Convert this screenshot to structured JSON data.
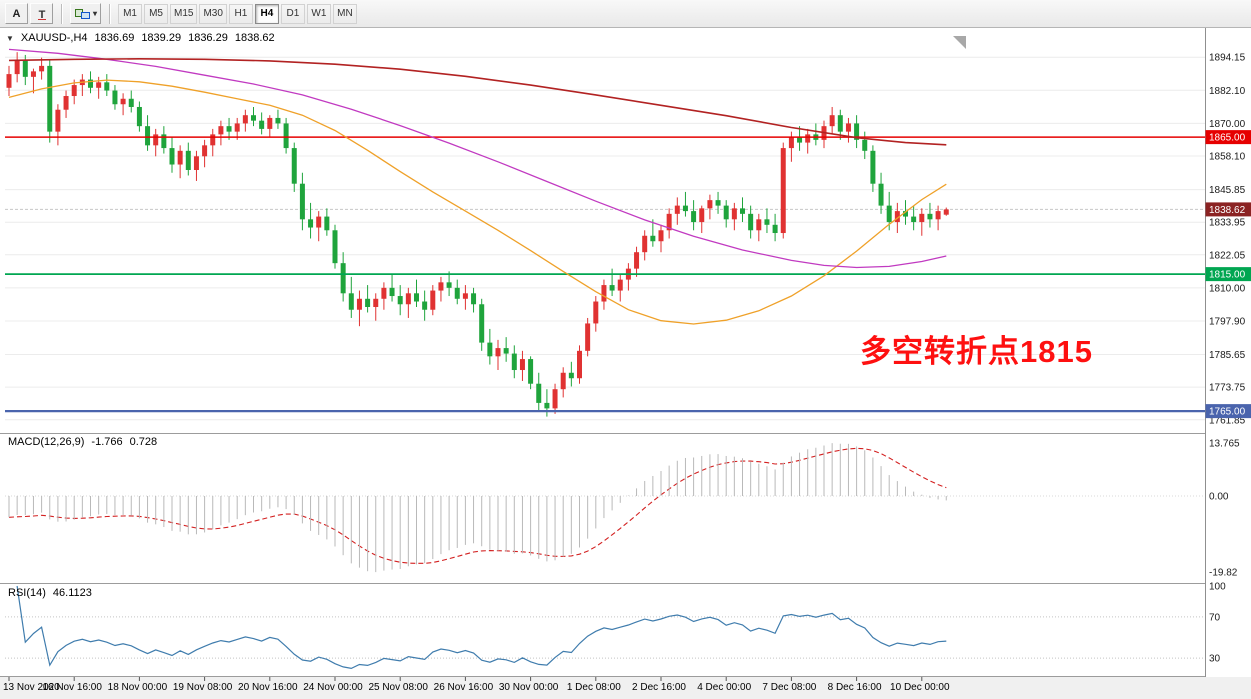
{
  "toolbar": {
    "tool_a_label": "A",
    "dropdown_caret": "▾",
    "timeframes": [
      "M1",
      "M5",
      "M15",
      "M30",
      "H1",
      "H4",
      "D1",
      "W1",
      "MN"
    ],
    "active_timeframe": "H4"
  },
  "main_chart": {
    "header": {
      "collapse_icon": "▼",
      "symbol": "XAUUSD-,H4",
      "open": "1836.69",
      "high": "1839.29",
      "low": "1836.29",
      "close": "1838.62"
    },
    "annotation": {
      "text": "多空转折点1815",
      "color": "#fe1010"
    },
    "price_axis": {
      "ticks": [
        1894.15,
        1882.1,
        1870.0,
        1858.1,
        1845.85,
        1833.95,
        1822.05,
        1810.0,
        1797.9,
        1785.65,
        1773.75,
        1761.85
      ]
    }
  },
  "chart_data": {
    "type": "candlestick",
    "symbol": "XAUUSD",
    "timeframe": "H4",
    "title": "XAUUSD-,H4",
    "ohlc_display": {
      "open": 1836.69,
      "high": 1839.29,
      "low": 1836.29,
      "close": 1838.62
    },
    "price_range": {
      "min": 1757,
      "max": 1903
    },
    "bull_color": "#e03232",
    "bear_color": "#1fa43c",
    "candles": [
      [
        1883,
        1891,
        1880,
        1888
      ],
      [
        1888,
        1896,
        1885,
        1893
      ],
      [
        1893,
        1895,
        1884,
        1887
      ],
      [
        1887,
        1890,
        1881,
        1889
      ],
      [
        1889,
        1894,
        1886,
        1891
      ],
      [
        1891,
        1893,
        1863,
        1867
      ],
      [
        1867,
        1877,
        1862,
        1875
      ],
      [
        1875,
        1882,
        1872,
        1880
      ],
      [
        1880,
        1886,
        1877,
        1884
      ],
      [
        1884,
        1888,
        1880,
        1886
      ],
      [
        1886,
        1889,
        1881,
        1883
      ],
      [
        1883,
        1887,
        1879,
        1885
      ],
      [
        1885,
        1888,
        1880,
        1882
      ],
      [
        1882,
        1884,
        1875,
        1877
      ],
      [
        1877,
        1881,
        1873,
        1879
      ],
      [
        1879,
        1882,
        1874,
        1876
      ],
      [
        1876,
        1878,
        1867,
        1869
      ],
      [
        1869,
        1873,
        1860,
        1862
      ],
      [
        1862,
        1868,
        1858,
        1866
      ],
      [
        1866,
        1869,
        1859,
        1861
      ],
      [
        1861,
        1865,
        1852,
        1855
      ],
      [
        1855,
        1862,
        1850,
        1860
      ],
      [
        1860,
        1863,
        1851,
        1853
      ],
      [
        1853,
        1860,
        1849,
        1858
      ],
      [
        1858,
        1864,
        1854,
        1862
      ],
      [
        1862,
        1868,
        1858,
        1866
      ],
      [
        1866,
        1871,
        1862,
        1869
      ],
      [
        1869,
        1872,
        1864,
        1867
      ],
      [
        1867,
        1872,
        1864,
        1870
      ],
      [
        1870,
        1875,
        1867,
        1873
      ],
      [
        1873,
        1876,
        1869,
        1871
      ],
      [
        1871,
        1874,
        1866,
        1868
      ],
      [
        1868,
        1873,
        1865,
        1872
      ],
      [
        1872,
        1875,
        1868,
        1870
      ],
      [
        1870,
        1872,
        1859,
        1861
      ],
      [
        1861,
        1863,
        1845,
        1848
      ],
      [
        1848,
        1852,
        1831,
        1835
      ],
      [
        1835,
        1841,
        1828,
        1832
      ],
      [
        1832,
        1838,
        1827,
        1836
      ],
      [
        1836,
        1839,
        1829,
        1831
      ],
      [
        1831,
        1833,
        1817,
        1819
      ],
      [
        1819,
        1823,
        1805,
        1808
      ],
      [
        1808,
        1814,
        1799,
        1802
      ],
      [
        1802,
        1809,
        1796,
        1806
      ],
      [
        1806,
        1811,
        1801,
        1803
      ],
      [
        1803,
        1808,
        1798,
        1806
      ],
      [
        1806,
        1812,
        1802,
        1810
      ],
      [
        1810,
        1815,
        1805,
        1807
      ],
      [
        1807,
        1811,
        1800,
        1804
      ],
      [
        1804,
        1810,
        1799,
        1808
      ],
      [
        1808,
        1813,
        1803,
        1805
      ],
      [
        1805,
        1809,
        1798,
        1802
      ],
      [
        1802,
        1811,
        1800,
        1809
      ],
      [
        1809,
        1814,
        1805,
        1812
      ],
      [
        1812,
        1816,
        1807,
        1810
      ],
      [
        1810,
        1813,
        1804,
        1806
      ],
      [
        1806,
        1811,
        1802,
        1808
      ],
      [
        1808,
        1810,
        1801,
        1804
      ],
      [
        1804,
        1806,
        1787,
        1790
      ],
      [
        1790,
        1795,
        1782,
        1785
      ],
      [
        1785,
        1791,
        1780,
        1788
      ],
      [
        1788,
        1792,
        1783,
        1786
      ],
      [
        1786,
        1789,
        1777,
        1780
      ],
      [
        1780,
        1787,
        1776,
        1784
      ],
      [
        1784,
        1785,
        1773,
        1775
      ],
      [
        1775,
        1779,
        1765,
        1768
      ],
      [
        1768,
        1773,
        1763,
        1766
      ],
      [
        1766,
        1775,
        1764,
        1773
      ],
      [
        1773,
        1781,
        1770,
        1779
      ],
      [
        1779,
        1783,
        1774,
        1777
      ],
      [
        1777,
        1789,
        1775,
        1787
      ],
      [
        1787,
        1799,
        1785,
        1797
      ],
      [
        1797,
        1807,
        1794,
        1805
      ],
      [
        1805,
        1813,
        1802,
        1811
      ],
      [
        1811,
        1817,
        1807,
        1809
      ],
      [
        1809,
        1815,
        1805,
        1813
      ],
      [
        1813,
        1819,
        1809,
        1817
      ],
      [
        1817,
        1825,
        1814,
        1823
      ],
      [
        1823,
        1831,
        1820,
        1829
      ],
      [
        1829,
        1835,
        1825,
        1827
      ],
      [
        1827,
        1833,
        1823,
        1831
      ],
      [
        1831,
        1839,
        1828,
        1837
      ],
      [
        1837,
        1843,
        1833,
        1840
      ],
      [
        1840,
        1845,
        1836,
        1838
      ],
      [
        1838,
        1842,
        1831,
        1834
      ],
      [
        1834,
        1840,
        1830,
        1839
      ],
      [
        1839,
        1844,
        1835,
        1842
      ],
      [
        1842,
        1845,
        1837,
        1840
      ],
      [
        1840,
        1842,
        1832,
        1835
      ],
      [
        1835,
        1841,
        1831,
        1839
      ],
      [
        1839,
        1843,
        1834,
        1837
      ],
      [
        1837,
        1840,
        1828,
        1831
      ],
      [
        1831,
        1837,
        1827,
        1835
      ],
      [
        1835,
        1839,
        1830,
        1833
      ],
      [
        1833,
        1837,
        1827,
        1830
      ],
      [
        1830,
        1863,
        1828,
        1861
      ],
      [
        1861,
        1867,
        1856,
        1865
      ],
      [
        1865,
        1869,
        1860,
        1863
      ],
      [
        1863,
        1868,
        1859,
        1866
      ],
      [
        1866,
        1870,
        1862,
        1864
      ],
      [
        1864,
        1871,
        1861,
        1869
      ],
      [
        1869,
        1876,
        1866,
        1873
      ],
      [
        1873,
        1875,
        1864,
        1867
      ],
      [
        1867,
        1872,
        1863,
        1870
      ],
      [
        1870,
        1873,
        1861,
        1864
      ],
      [
        1864,
        1867,
        1857,
        1860
      ],
      [
        1860,
        1862,
        1845,
        1848
      ],
      [
        1848,
        1852,
        1837,
        1840
      ],
      [
        1840,
        1845,
        1831,
        1834
      ],
      [
        1834,
        1841,
        1830,
        1838
      ],
      [
        1838,
        1842,
        1833,
        1836
      ],
      [
        1836,
        1840,
        1831,
        1834
      ],
      [
        1834,
        1839,
        1829,
        1837
      ],
      [
        1837,
        1841,
        1832,
        1835
      ],
      [
        1835,
        1840,
        1831,
        1838
      ],
      [
        1836.69,
        1839.29,
        1836.29,
        1838.62
      ]
    ],
    "moving_averages": [
      {
        "name": "ma-fast-orange",
        "color": "#efa129",
        "width": 1.3,
        "points": [
          [
            0,
            1879.5
          ],
          [
            4,
            1882.6
          ],
          [
            8,
            1884.8
          ],
          [
            12,
            1885.8
          ],
          [
            16,
            1885.2
          ],
          [
            20,
            1883.6
          ],
          [
            24,
            1881.4
          ],
          [
            28,
            1879.0
          ],
          [
            32,
            1876.6
          ],
          [
            36,
            1873.0
          ],
          [
            40,
            1867.4
          ],
          [
            44,
            1860.2
          ],
          [
            48,
            1852.4
          ],
          [
            52,
            1845.0
          ],
          [
            56,
            1838.0
          ],
          [
            60,
            1831.0
          ],
          [
            64,
            1823.6
          ],
          [
            68,
            1816.0
          ],
          [
            72,
            1808.6
          ],
          [
            76,
            1802.0
          ],
          [
            80,
            1798.0
          ],
          [
            84,
            1796.8
          ],
          [
            88,
            1798.2
          ],
          [
            92,
            1801.6
          ],
          [
            96,
            1807.0
          ],
          [
            100,
            1814.4
          ],
          [
            104,
            1823.4
          ],
          [
            108,
            1833.2
          ],
          [
            112,
            1842.2
          ],
          [
            115,
            1847.8
          ]
        ]
      },
      {
        "name": "ma-medium-magenta",
        "color": "#c13ac1",
        "width": 1.3,
        "points": [
          [
            0,
            1897.0
          ],
          [
            6,
            1895.6
          ],
          [
            12,
            1893.4
          ],
          [
            18,
            1890.8
          ],
          [
            24,
            1887.6
          ],
          [
            30,
            1884.4
          ],
          [
            36,
            1880.4
          ],
          [
            42,
            1875.2
          ],
          [
            48,
            1869.2
          ],
          [
            54,
            1862.8
          ],
          [
            60,
            1856.0
          ],
          [
            66,
            1848.8
          ],
          [
            72,
            1841.6
          ],
          [
            78,
            1834.8
          ],
          [
            84,
            1828.8
          ],
          [
            90,
            1823.8
          ],
          [
            96,
            1820.0
          ],
          [
            100,
            1818.2
          ],
          [
            104,
            1817.4
          ],
          [
            108,
            1817.8
          ],
          [
            112,
            1819.6
          ],
          [
            115,
            1821.6
          ]
        ]
      },
      {
        "name": "ma-slow-darkred",
        "color": "#b22222",
        "width": 1.6,
        "points": [
          [
            0,
            1893.0
          ],
          [
            8,
            1893.4
          ],
          [
            16,
            1893.6
          ],
          [
            24,
            1893.4
          ],
          [
            32,
            1892.8
          ],
          [
            40,
            1891.6
          ],
          [
            48,
            1889.8
          ],
          [
            56,
            1887.2
          ],
          [
            64,
            1884.0
          ],
          [
            72,
            1880.4
          ],
          [
            80,
            1876.6
          ],
          [
            88,
            1872.8
          ],
          [
            96,
            1868.5
          ],
          [
            104,
            1864.8
          ],
          [
            110,
            1863.0
          ],
          [
            115,
            1862.2
          ]
        ]
      }
    ],
    "horizontal_lines": [
      {
        "price": 1865.0,
        "label": "1865.00",
        "color": "#e60000"
      },
      {
        "price": 1815.0,
        "label": "1815.00",
        "color": "#00a651"
      },
      {
        "price": 1765.0,
        "label": "1765.00",
        "color": "#4a64ad"
      }
    ],
    "current_price": {
      "value": 1838.62,
      "label": "1838.62",
      "tag_color": "#8b2323"
    },
    "indicators": {
      "macd": {
        "label": "MACD(12,26,9)",
        "value": "-1.766",
        "signal_value": "0.728",
        "fast": 12,
        "slow": 26,
        "signal": 9,
        "scale_max": 13.765,
        "scale_min": -19.82,
        "scale_labels": [
          {
            "text": "13.765",
            "value": 13.765
          },
          {
            "text": "0.00",
            "value": 0
          },
          {
            "text": "-19.82",
            "value": -19.82
          }
        ],
        "hist_color": "#b9b9b9",
        "signal_color": "#d32020"
      },
      "rsi": {
        "label": "RSI(14)",
        "value": "46.1123",
        "period": 14,
        "levels": [
          70,
          30
        ],
        "scale_labels": [
          {
            "text": "100",
            "value": 100
          },
          {
            "text": "70",
            "value": 70
          },
          {
            "text": "30",
            "value": 30
          }
        ],
        "color": "#3f7cad"
      }
    },
    "time_labels": [
      {
        "text": "13 Nov 2020",
        "bar": 0
      },
      {
        "text": "16 Nov 16:00",
        "bar": 8
      },
      {
        "text": "18 Nov 00:00",
        "bar": 16
      },
      {
        "text": "19 Nov 08:00",
        "bar": 24
      },
      {
        "text": "20 Nov 16:00",
        "bar": 32
      },
      {
        "text": "24 Nov 00:00",
        "bar": 40
      },
      {
        "text": "25 Nov 08:00",
        "bar": 48
      },
      {
        "text": "26 Nov 16:00",
        "bar": 56
      },
      {
        "text": "30 Nov 00:00",
        "bar": 64
      },
      {
        "text": "1 Dec 08:00",
        "bar": 72
      },
      {
        "text": "2 Dec 16:00",
        "bar": 80
      },
      {
        "text": "4 Dec 00:00",
        "bar": 88
      },
      {
        "text": "7 Dec 08:00",
        "bar": 96
      },
      {
        "text": "8 Dec 16:00",
        "bar": 104
      },
      {
        "text": "10 Dec 00:00",
        "bar": 112
      }
    ]
  }
}
